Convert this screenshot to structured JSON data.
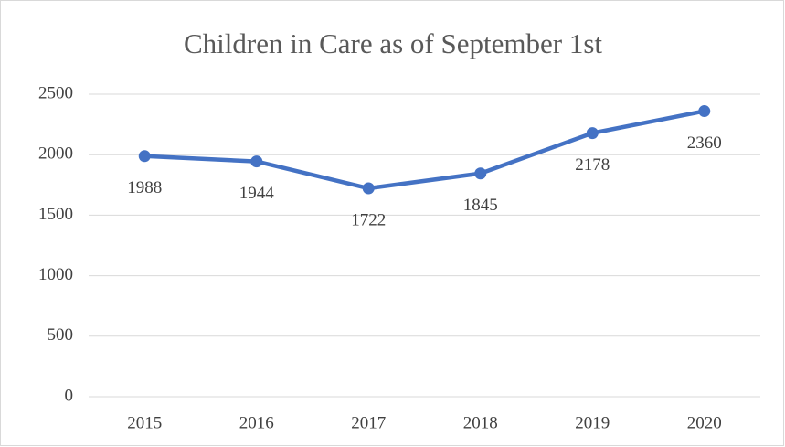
{
  "chart_data": {
    "type": "line",
    "title": "Children in Care as of September 1st",
    "categories": [
      "2015",
      "2016",
      "2017",
      "2018",
      "2019",
      "2020"
    ],
    "series": [
      {
        "name": "Children in Care",
        "color": "#4472c4",
        "values": [
          1988,
          1944,
          1722,
          1845,
          2178,
          2360
        ]
      }
    ],
    "ylim": [
      0,
      2500
    ],
    "yticks": [
      0,
      500,
      1000,
      1500,
      2000,
      2500
    ],
    "grid": true
  }
}
